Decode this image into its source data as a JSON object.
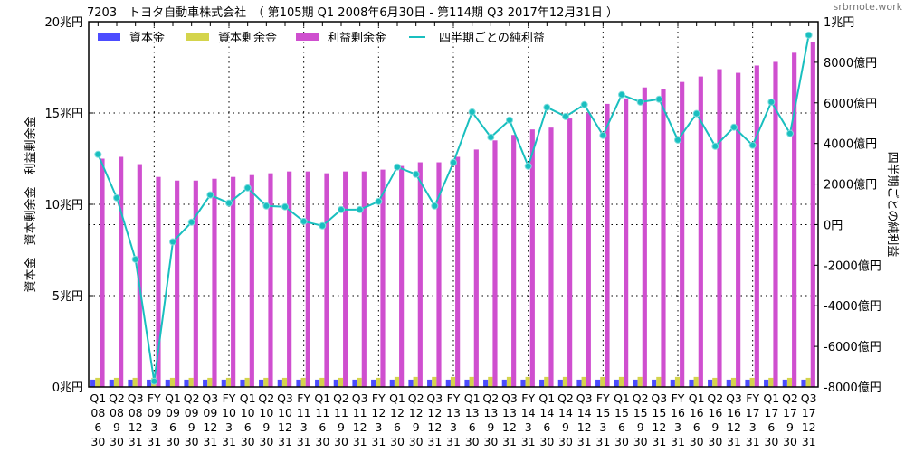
{
  "chart_data": {
    "type": "bar",
    "title": "7203　トヨタ自動車株式会社　（ 第105期 Q1 2008年6月30日 - 第114期 Q3 2017年12月31日 ）",
    "watermark": "srbrnote.work",
    "ylabel_left": "資本金　資本剰余金　利益剰余金",
    "ylabel_right": "四半期ごとの純利益",
    "ylim_left": [
      0,
      20
    ],
    "left_ticks": [
      {
        "v": 0,
        "label": "0兆円"
      },
      {
        "v": 5,
        "label": "5兆円"
      },
      {
        "v": 10,
        "label": "10兆円"
      },
      {
        "v": 15,
        "label": "15兆円"
      },
      {
        "v": 20,
        "label": "20兆円"
      }
    ],
    "ylim_right": [
      -8000,
      10000
    ],
    "right_ticks": [
      {
        "v": -8000,
        "label": "-8000億円"
      },
      {
        "v": -6000,
        "label": "-6000億円"
      },
      {
        "v": -4000,
        "label": "-4000億円"
      },
      {
        "v": -2000,
        "label": "-2000億円"
      },
      {
        "v": 0,
        "label": "0円"
      },
      {
        "v": 2000,
        "label": "2000億円"
      },
      {
        "v": 4000,
        "label": "4000億円"
      },
      {
        "v": 6000,
        "label": "6000億円"
      },
      {
        "v": 8000,
        "label": "8000億円"
      },
      {
        "v": 10000,
        "label": "1兆円"
      }
    ],
    "grid": true,
    "legend_placement": "top",
    "categories": [
      [
        "Q1",
        "08",
        "6",
        "30"
      ],
      [
        "Q2",
        "08",
        "9",
        "30"
      ],
      [
        "Q3",
        "08",
        "12",
        "31"
      ],
      [
        "FY",
        "09",
        "3",
        "31"
      ],
      [
        "Q1",
        "09",
        "6",
        "30"
      ],
      [
        "Q2",
        "09",
        "9",
        "30"
      ],
      [
        "Q3",
        "09",
        "12",
        "31"
      ],
      [
        "FY",
        "10",
        "3",
        "31"
      ],
      [
        "Q1",
        "10",
        "6",
        "30"
      ],
      [
        "Q2",
        "10",
        "9",
        "30"
      ],
      [
        "Q3",
        "10",
        "12",
        "31"
      ],
      [
        "FY",
        "11",
        "3",
        "31"
      ],
      [
        "Q1",
        "11",
        "6",
        "30"
      ],
      [
        "Q2",
        "11",
        "9",
        "30"
      ],
      [
        "Q3",
        "11",
        "12",
        "31"
      ],
      [
        "FY",
        "12",
        "3",
        "31"
      ],
      [
        "Q1",
        "12",
        "6",
        "30"
      ],
      [
        "Q2",
        "12",
        "9",
        "30"
      ],
      [
        "Q3",
        "12",
        "12",
        "31"
      ],
      [
        "FY",
        "13",
        "3",
        "31"
      ],
      [
        "Q1",
        "13",
        "6",
        "30"
      ],
      [
        "Q2",
        "13",
        "9",
        "30"
      ],
      [
        "Q3",
        "13",
        "12",
        "31"
      ],
      [
        "FY",
        "14",
        "3",
        "31"
      ],
      [
        "Q1",
        "14",
        "6",
        "30"
      ],
      [
        "Q2",
        "14",
        "9",
        "30"
      ],
      [
        "Q3",
        "14",
        "12",
        "31"
      ],
      [
        "FY",
        "15",
        "3",
        "31"
      ],
      [
        "Q1",
        "15",
        "6",
        "30"
      ],
      [
        "Q2",
        "15",
        "9",
        "30"
      ],
      [
        "Q3",
        "15",
        "12",
        "31"
      ],
      [
        "FY",
        "16",
        "3",
        "31"
      ],
      [
        "Q1",
        "16",
        "6",
        "30"
      ],
      [
        "Q2",
        "16",
        "9",
        "30"
      ],
      [
        "Q3",
        "16",
        "12",
        "31"
      ],
      [
        "FY",
        "17",
        "3",
        "31"
      ],
      [
        "Q1",
        "17",
        "6",
        "30"
      ],
      [
        "Q2",
        "17",
        "9",
        "30"
      ],
      [
        "Q3",
        "17",
        "12",
        "31"
      ]
    ],
    "series": [
      {
        "name": "資本金",
        "axis": "left",
        "type": "bar",
        "color": "#4c4cff",
        "values": [
          0.4,
          0.4,
          0.4,
          0.4,
          0.4,
          0.4,
          0.4,
          0.4,
          0.4,
          0.4,
          0.4,
          0.4,
          0.4,
          0.4,
          0.4,
          0.4,
          0.4,
          0.4,
          0.4,
          0.4,
          0.4,
          0.4,
          0.4,
          0.4,
          0.4,
          0.4,
          0.4,
          0.4,
          0.4,
          0.4,
          0.4,
          0.4,
          0.4,
          0.4,
          0.4,
          0.4,
          0.4,
          0.4,
          0.4
        ]
      },
      {
        "name": "資本剰余金",
        "axis": "left",
        "type": "bar",
        "color": "#d4d44c",
        "values": [
          0.5,
          0.5,
          0.5,
          0.5,
          0.5,
          0.5,
          0.5,
          0.5,
          0.5,
          0.5,
          0.5,
          0.5,
          0.5,
          0.5,
          0.5,
          0.5,
          0.55,
          0.55,
          0.55,
          0.55,
          0.55,
          0.55,
          0.55,
          0.55,
          0.55,
          0.55,
          0.55,
          0.55,
          0.55,
          0.55,
          0.55,
          0.55,
          0.55,
          0.5,
          0.5,
          0.5,
          0.5,
          0.5,
          0.5
        ]
      },
      {
        "name": "利益剰余金",
        "axis": "left",
        "type": "bar",
        "color": "#cf4fcf",
        "values": [
          12.5,
          12.6,
          12.2,
          11.5,
          11.3,
          11.3,
          11.4,
          11.5,
          11.6,
          11.7,
          11.8,
          11.8,
          11.7,
          11.8,
          11.8,
          11.9,
          12.1,
          12.3,
          12.3,
          12.6,
          13.0,
          13.5,
          13.8,
          14.1,
          14.2,
          14.7,
          15.0,
          15.5,
          15.8,
          16.4,
          16.3,
          16.7,
          17.0,
          17.4,
          17.2,
          17.6,
          17.8,
          18.3,
          18.9
        ]
      },
      {
        "name": "四半期ごとの純利益",
        "axis": "right",
        "type": "line",
        "color": "#19bfbf",
        "values": [
          3460,
          1320,
          -1710,
          -7720,
          -850,
          120,
          1460,
          1060,
          1810,
          920,
          880,
          160,
          -60,
          740,
          740,
          1140,
          2840,
          2480,
          920,
          3060,
          5550,
          4310,
          5150,
          2880,
          5780,
          5330,
          5910,
          4400,
          6400,
          6040,
          6180,
          4170,
          5470,
          3860,
          4800,
          3910,
          6040,
          4490,
          9340
        ]
      }
    ]
  }
}
